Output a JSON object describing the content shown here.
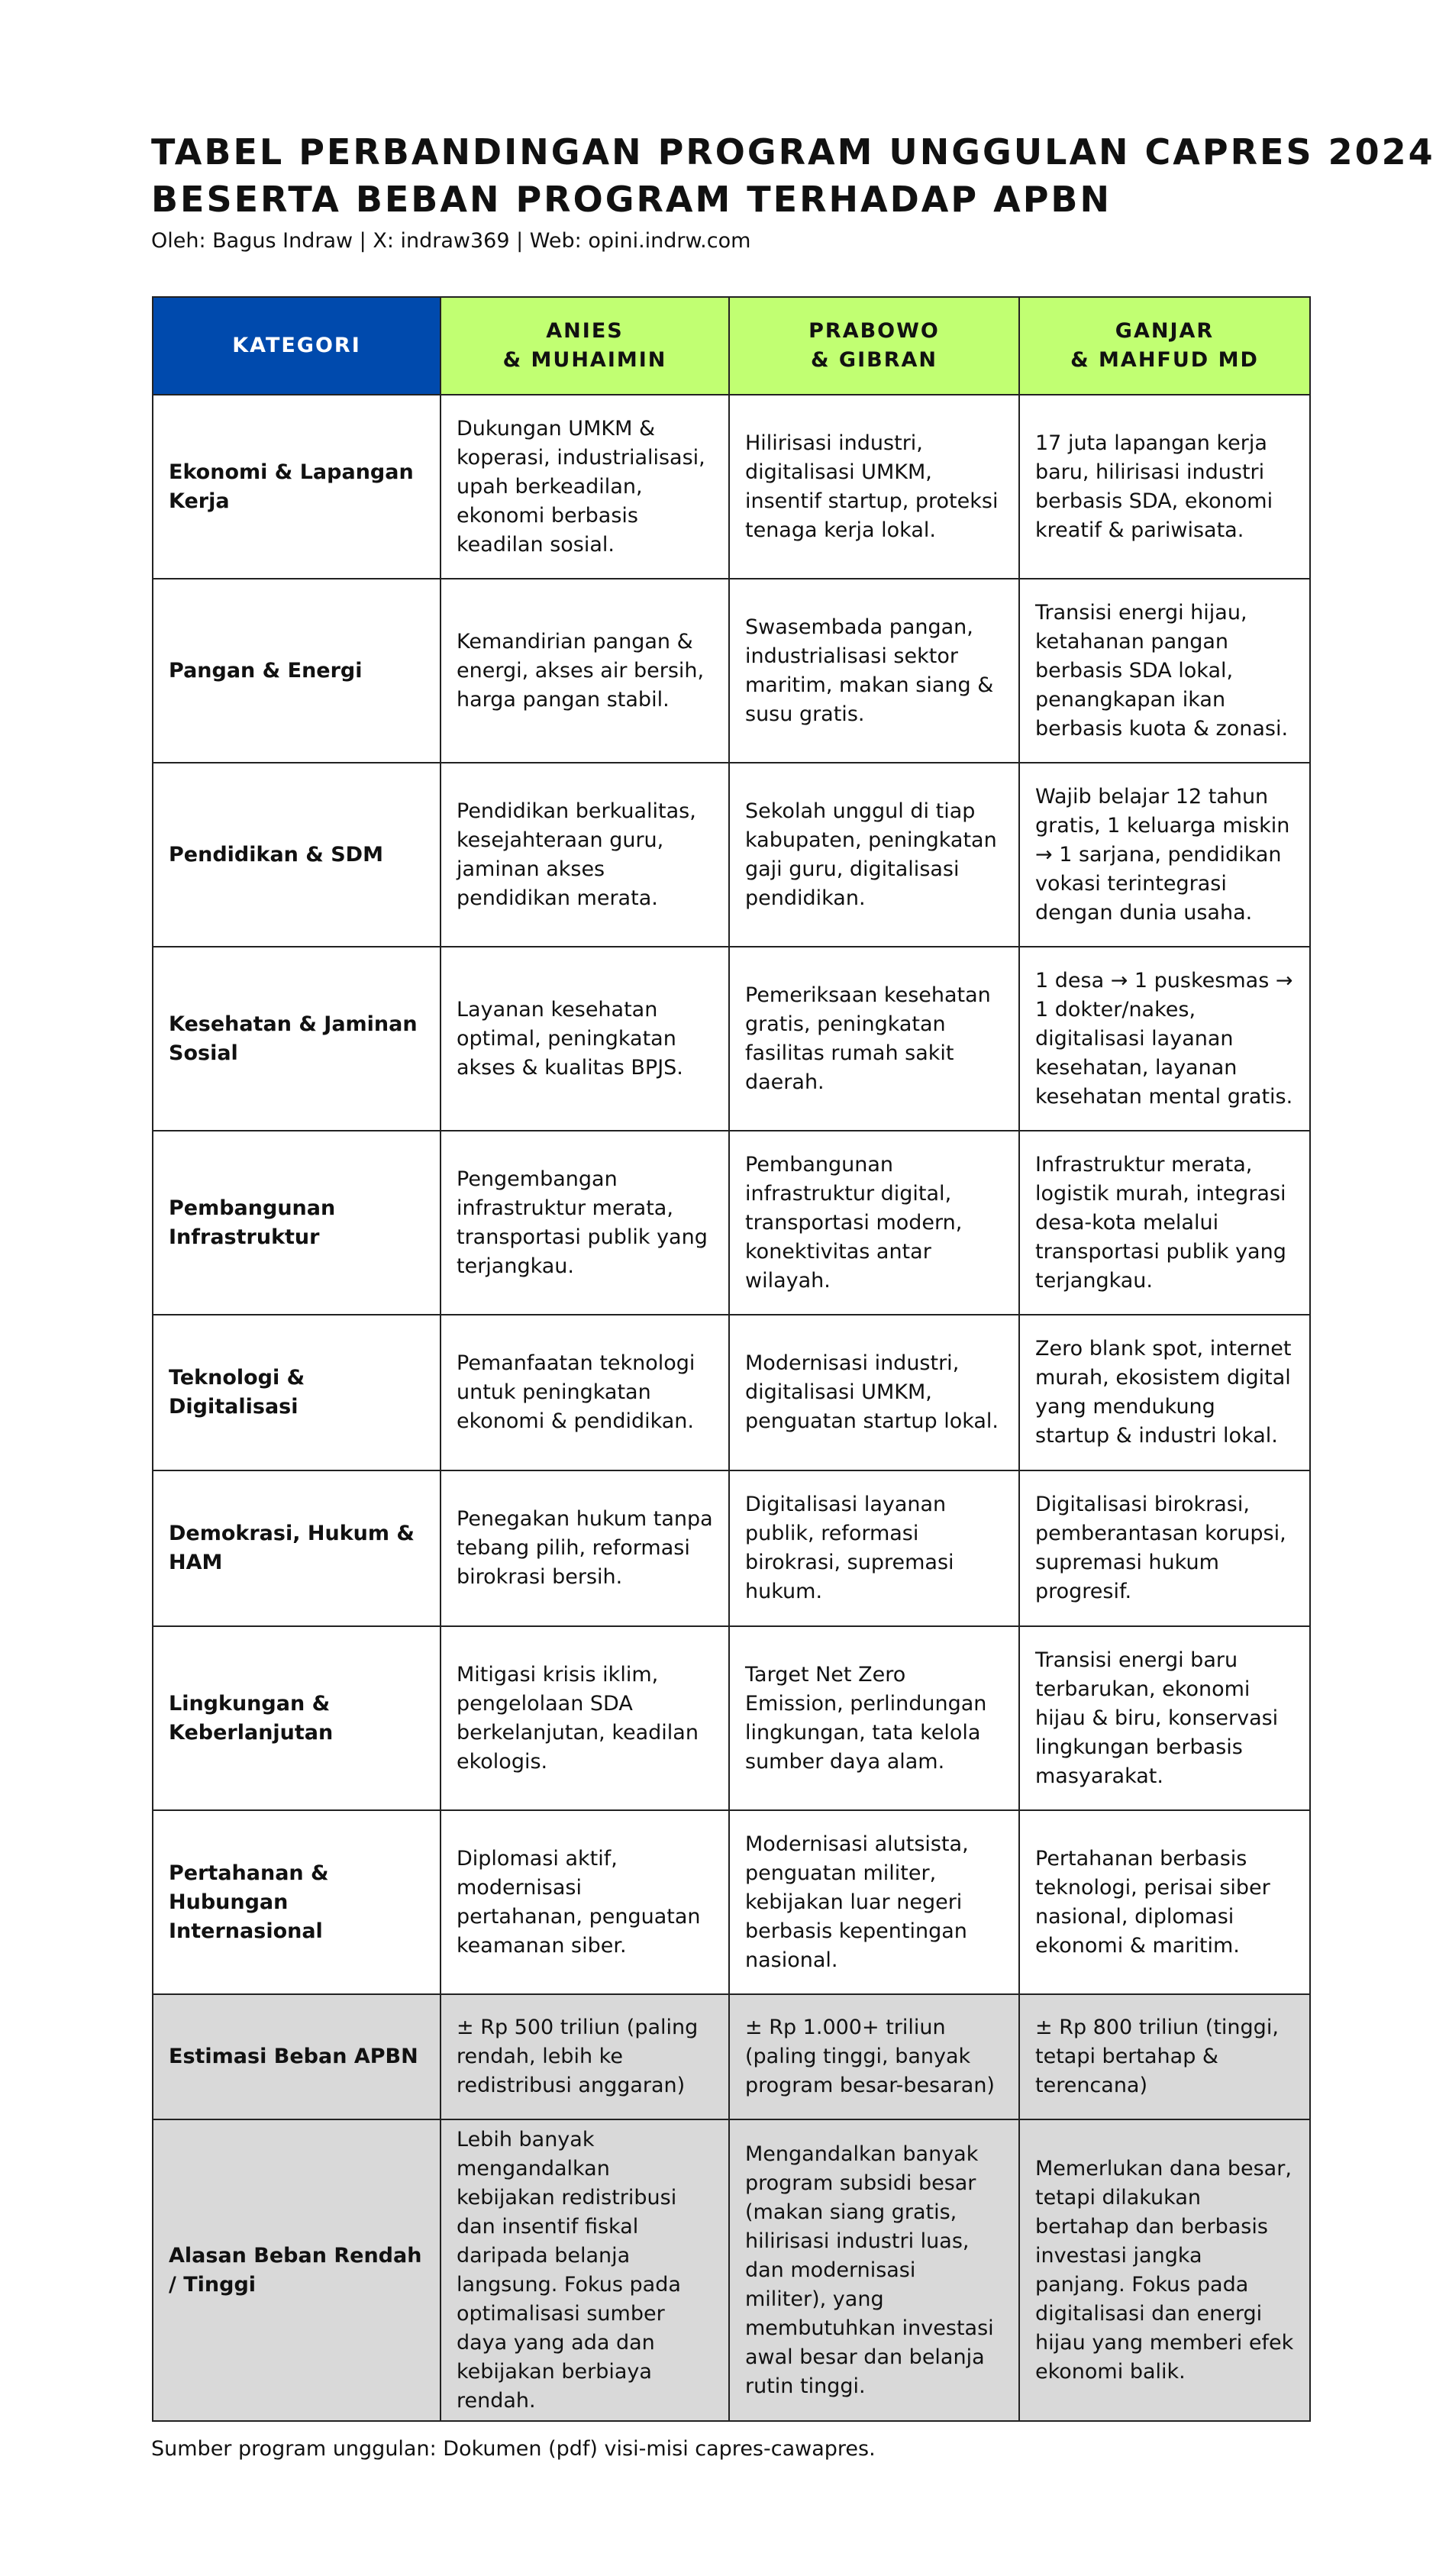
{
  "title_line1": "TABEL PERBANDINGAN PROGRAM UNGGULAN CAPRES 2024",
  "title_line2": "BESERTA BEBAN PROGRAM TERHADAP APBN",
  "byline": "Oleh: Bagus Indraw | X: indraw369 | Web: opini.indrw.com",
  "header": {
    "kategori": "KATEGORI",
    "c1a": "ANIES",
    "c1b": "& MUHAIMIN",
    "c2a": "PRABOWO",
    "c2b": "& GIBRAN",
    "c3a": "GANJAR",
    "c3b": "& MAHFUD MD"
  },
  "rows": [
    {
      "cat": "Ekonomi & Lapangan Kerja",
      "a": "Dukungan UMKM & koperasi, industrialisasi, upah berkeadilan, ekonomi berbasis keadilan sosial.",
      "p": "Hilirisasi industri, digitalisasi UMKM, insentif startup, proteksi tenaga kerja lokal.",
      "g": "17 juta lapangan kerja baru, hilirisasi industri berbasis SDA, ekonomi kreatif & pariwisata."
    },
    {
      "cat": "Pangan & Energi",
      "a": "Kemandirian pangan & energi, akses air bersih, harga pangan stabil.",
      "p": "Swasembada pangan, industrialisasi sektor maritim, makan siang & susu gratis.",
      "g": "Transisi energi hijau, ketahanan pangan berbasis SDA lokal, penangkapan ikan berbasis kuota & zonasi."
    },
    {
      "cat": "Pendidikan & SDM",
      "a": "Pendidikan berkualitas, kesejahteraan guru, jaminan akses pendidikan merata.",
      "p": "Sekolah unggul di tiap kabupaten, peningkatan gaji guru, digitalisasi pendidikan.",
      "g": "Wajib belajar 12 tahun gratis, 1 keluarga miskin → 1 sarjana, pendidikan vokasi terintegrasi dengan dunia usaha."
    },
    {
      "cat": "Kesehatan & Jaminan Sosial",
      "a": "Layanan kesehatan optimal, peningkatan akses & kualitas BPJS.",
      "p": "Pemeriksaan kesehatan gratis, peningkatan fasilitas rumah sakit daerah.",
      "g": "1 desa → 1 puskesmas → 1 dokter/nakes, digitalisasi layanan kesehatan, layanan kesehatan mental gratis."
    },
    {
      "cat": "Pembangunan Infrastruktur",
      "a": "Pengembangan infrastruktur merata, transportasi publik yang terjangkau.",
      "p": "Pembangunan infrastruktur digital, transportasi modern, konektivitas antar wilayah.",
      "g": "Infrastruktur merata, logistik murah, integrasi desa-kota melalui transportasi publik yang terjangkau."
    },
    {
      "cat": "Teknologi & Digitalisasi",
      "a": "Pemanfaatan teknologi untuk peningkatan ekonomi & pendidikan.",
      "p": "Modernisasi industri, digitalisasi UMKM, penguatan startup lokal.",
      "g": "Zero blank spot, internet murah, ekosistem digital yang mendukung startup & industri lokal."
    },
    {
      "cat": "Demokrasi, Hukum & HAM",
      "a": "Penegakan hukum tanpa tebang pilih, reformasi birokrasi bersih.",
      "p": "Digitalisasi layanan publik, reformasi birokrasi, supremasi hukum.",
      "g": "Digitalisasi birokrasi, pemberantasan korupsi, supremasi hukum progresif."
    },
    {
      "cat": "Lingkungan & Keberlanjutan",
      "a": "Mitigasi krisis iklim, pengelolaan SDA berkelanjutan, keadilan ekologis.",
      "p": "Target Net Zero Emission, perlindungan lingkungan, tata kelola sumber daya alam.",
      "g": "Transisi energi baru terbarukan, ekonomi hijau & biru, konservasi lingkungan berbasis masyarakat."
    },
    {
      "cat": "Pertahanan & Hubungan Internasional",
      "a": "Diplomasi aktif, modernisasi pertahanan, penguatan keamanan siber.",
      "p": "Modernisasi alutsista, penguatan militer, kebijakan luar negeri berbasis kepentingan nasional.",
      "g": "Pertahanan berbasis teknologi, perisai siber nasional, diplomasi ekonomi & maritim."
    },
    {
      "cat": "Estimasi Beban APBN",
      "a": "± Rp 500 triliun (paling rendah, lebih ke redistribusi anggaran)",
      "p": "± Rp 1.000+ triliun (paling tinggi, banyak program besar-besaran)",
      "g": "± Rp 800 triliun (tinggi, tetapi bertahap & terencana)"
    },
    {
      "cat": "Alasan Beban Rendah / Tinggi",
      "a": "Lebih banyak mengandalkan kebijakan redistribusi dan insentif fiskal daripada belanja langsung. Fokus pada optimalisasi sumber daya yang ada dan kebijakan berbiaya rendah.",
      "p": "Mengandalkan banyak program subsidi besar (makan siang gratis, hilirisasi industri luas, dan modernisasi militer), yang membutuhkan investasi awal besar dan belanja rutin tinggi.",
      "g": "Memerlukan dana besar, tetapi dilakukan bertahap dan berbasis investasi jangka panjang. Fokus pada digitalisasi dan energi hijau yang memberi efek ekonomi balik."
    }
  ],
  "source": "Sumber program unggulan: Dokumen (pdf) visi-misi capres-cawapres.",
  "colors": {
    "header_kategori": "#004aad",
    "header_candidates": "#c1ff72",
    "summary_rows": "#d9d9d9"
  }
}
